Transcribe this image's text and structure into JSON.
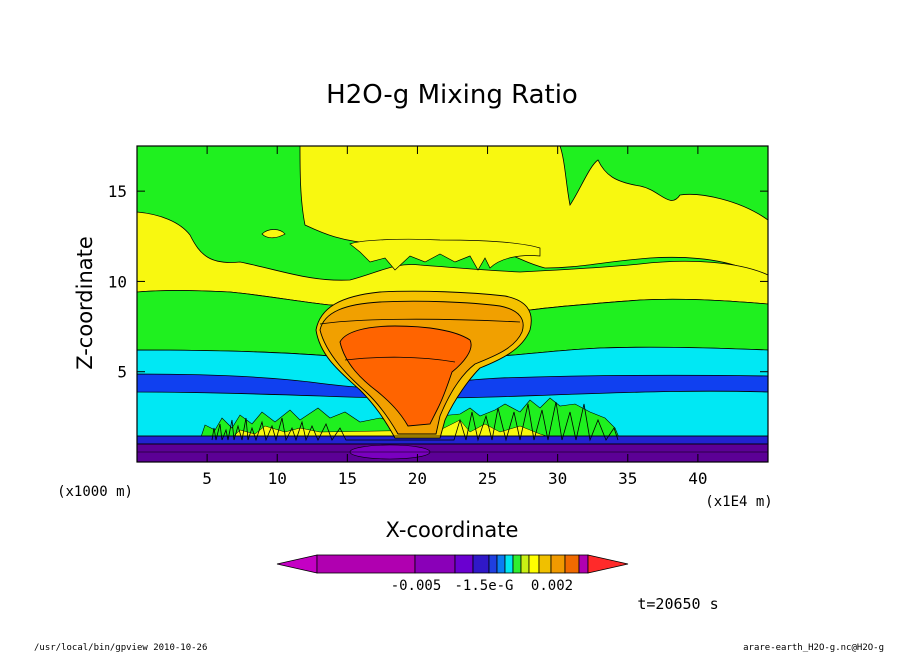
{
  "chart_data": {
    "type": "heatmap",
    "title": "H2O-g Mixing Ratio",
    "xlabel": "X-coordinate",
    "ylabel": "Z-coordinate",
    "x_unit_label": "(x1E4 m)",
    "y_unit_label": "(x1000 m)",
    "x_ticks": [
      5,
      10,
      15,
      20,
      25,
      30,
      35,
      40
    ],
    "y_ticks": [
      5,
      10,
      15
    ],
    "xlim": [
      0,
      45
    ],
    "ylim": [
      0,
      17.5
    ],
    "grid": false,
    "colorbar": {
      "labels": [
        "-0.005",
        "-1.5e-G",
        "0.002"
      ],
      "colors": [
        "#c400c4",
        "#b000b0",
        "#8a00b8",
        "#6a00d0",
        "#3018c8",
        "#1f3fe0",
        "#0b7cf2",
        "#00e6f0",
        "#30ee30",
        "#c8f014",
        "#ffff00",
        "#f0c000",
        "#f09a00",
        "#f06a00",
        "#ff2a2a"
      ]
    },
    "band_colors": {
      "deep": "#5c0096",
      "dark_blue": "#2222d0",
      "blue": "#1040f0",
      "cyan": "#00e8f4",
      "green": "#1ff01f",
      "yellow": "#f8f810",
      "light_orange": "#f5c200",
      "orange": "#f1a000",
      "red_orange": "#ff6400"
    },
    "time_label": "t=20650 s"
  },
  "footer": {
    "left": "/usr/local/bin/gpview  2010-10-26",
    "right": "arare-earth_H2O-g.nc@H2O-g"
  }
}
